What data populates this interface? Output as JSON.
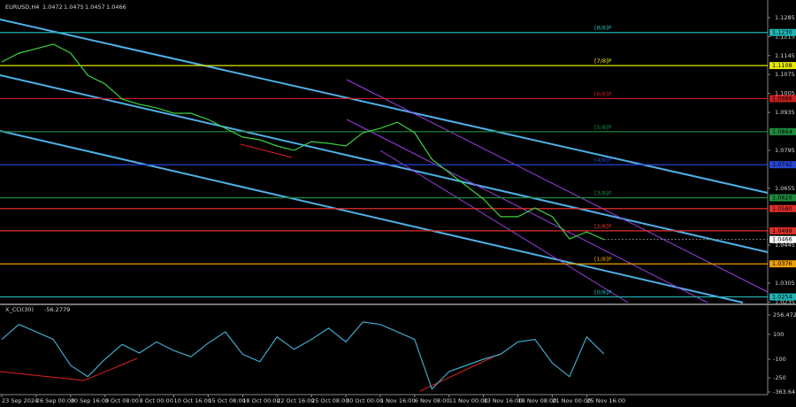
{
  "chart_data": {
    "type": "line",
    "ohlc_header": [
      1.0472,
      1.0475,
      1.0457
    ],
    "categories": [
      "23 Sep 2024",
      null,
      "26 Sep 00:00",
      null,
      "30 Sep 16:00",
      null,
      "3 Oct 08:00",
      null,
      "8 Oct 00:00",
      null,
      "10 Oct 16:00",
      null,
      "15 Oct 08:00",
      null,
      "18 Oct 00:00",
      null,
      "22 Oct 16:00",
      null,
      "25 Oct 08:00",
      null,
      "30 Oct 00:00",
      null,
      "1 Nov 16:00",
      null,
      "6 Nov 08:00",
      null,
      "11 Nov 00:00",
      null,
      "13 Nov 16:00",
      null,
      "18 Nov 08:00",
      null,
      "21 Nov 00:00",
      null,
      "25 Nov 16:00",
      null
    ],
    "series": [
      {
        "name": "EURUSD,H4",
        "color": "#3cd23c",
        "values": [
          1.1121,
          1.1154,
          1.117,
          1.1187,
          1.1154,
          1.1072,
          1.104,
          1.0984,
          1.0965,
          1.0952,
          1.0932,
          1.0932,
          1.0909,
          1.0876,
          1.0844,
          1.0834,
          1.0811,
          1.0795,
          1.0827,
          1.0821,
          1.0811,
          1.086,
          1.0876,
          1.0899,
          1.086,
          1.0762,
          1.0713,
          1.0664,
          1.0615,
          1.055,
          1.055,
          1.0582,
          1.055,
          1.0468,
          1.0494,
          1.0466
        ]
      },
      {
        "name": "X_CCI(30)",
        "color": "#3fa9c9",
        "axis": "y2",
        "values": [
          60,
          180,
          120,
          60,
          -150,
          -240,
          -100,
          20,
          -50,
          40,
          -30,
          -80,
          30,
          120,
          -60,
          -120,
          80,
          -20,
          60,
          150,
          40,
          200,
          180,
          120,
          60,
          -340,
          -200,
          -150,
          -100,
          -60,
          40,
          60,
          -130,
          -240,
          80,
          -56.2779
        ]
      }
    ],
    "ylim": [
      1.0233,
      1.135
    ],
    "yticks": [
      1.1285,
      1.1215,
      1.1145,
      1.1075,
      1.1005,
      1.0935,
      1.0795,
      1.0655,
      1.0445,
      1.0305,
      1.0235
    ],
    "y2lim": [
      -363.641,
      256.4725
    ],
    "y2ticks": [
      256.4725,
      100,
      -100,
      -250,
      -363.641
    ],
    "levels": [
      {
        "price": {
          "value": 1.123,
          "label": "1.1230"
        },
        "tag": "[8/8]P",
        "color": "#1fb5b5"
      },
      {
        "price": {
          "value": 1.1108,
          "label": "1.1108"
        },
        "tag": "[7/8]P",
        "color": "#e8e800"
      },
      {
        "price": {
          "value": 1.0986,
          "label": "1.0986"
        },
        "tag": "[6/8]P",
        "color": "#c81e1e"
      },
      {
        "price": {
          "value": 1.0864,
          "label": "1.0864"
        },
        "tag": "[5/8]P",
        "color": "#1e8c3c"
      },
      {
        "price": {
          "value": 1.0742,
          "label": "1.0742"
        },
        "tag": "[4/8]P",
        "color": "#2846d2"
      },
      {
        "price": {
          "value": 1.062,
          "label": "1.0620"
        },
        "tag": "[3/8]P",
        "color": "#1e8c3c"
      },
      {
        "price": {
          "value": 1.058,
          "label": "1.0580"
        },
        "color": "#e0302a"
      },
      {
        "price": {
          "value": 1.0498,
          "label": "1.0498"
        },
        "tag": "[2/8]P",
        "color": "#e0302a"
      },
      {
        "price": {
          "value": 1.0376,
          "label": "1.0376"
        },
        "tag": "[1/8]P",
        "color": "#f0a000"
      },
      {
        "price": {
          "value": 1.0254,
          "label": "1.0254"
        },
        "tag": "[0/8]P",
        "color": "#1fb5b5"
      }
    ]
  }
}
